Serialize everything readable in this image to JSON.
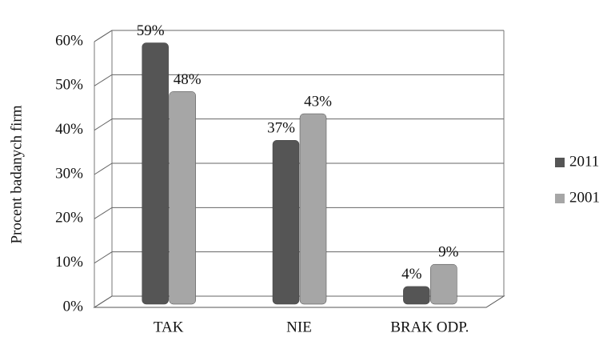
{
  "chart_data": {
    "type": "bar",
    "y_label": "Procent badanych firm",
    "categories": [
      "TAK",
      "NIE",
      "BRAK ODP."
    ],
    "series": [
      {
        "name": "2011",
        "color": "#555555",
        "values": [
          59,
          37,
          4
        ],
        "value_labels": [
          "59%",
          "37%",
          "4%"
        ]
      },
      {
        "name": "2001",
        "color": "#a6a6a6",
        "values": [
          48,
          43,
          9
        ],
        "value_labels": [
          "48%",
          "43%",
          "9%"
        ]
      }
    ],
    "ylim": [
      0,
      60
    ],
    "yticks": [
      {
        "value": 0,
        "label": "0%"
      },
      {
        "value": 10,
        "label": "10%"
      },
      {
        "value": 20,
        "label": "20%"
      },
      {
        "value": 30,
        "label": "30%"
      },
      {
        "value": 40,
        "label": "40%"
      },
      {
        "value": 50,
        "label": "50%"
      },
      {
        "value": 60,
        "label": "60%"
      }
    ],
    "grid": true
  }
}
